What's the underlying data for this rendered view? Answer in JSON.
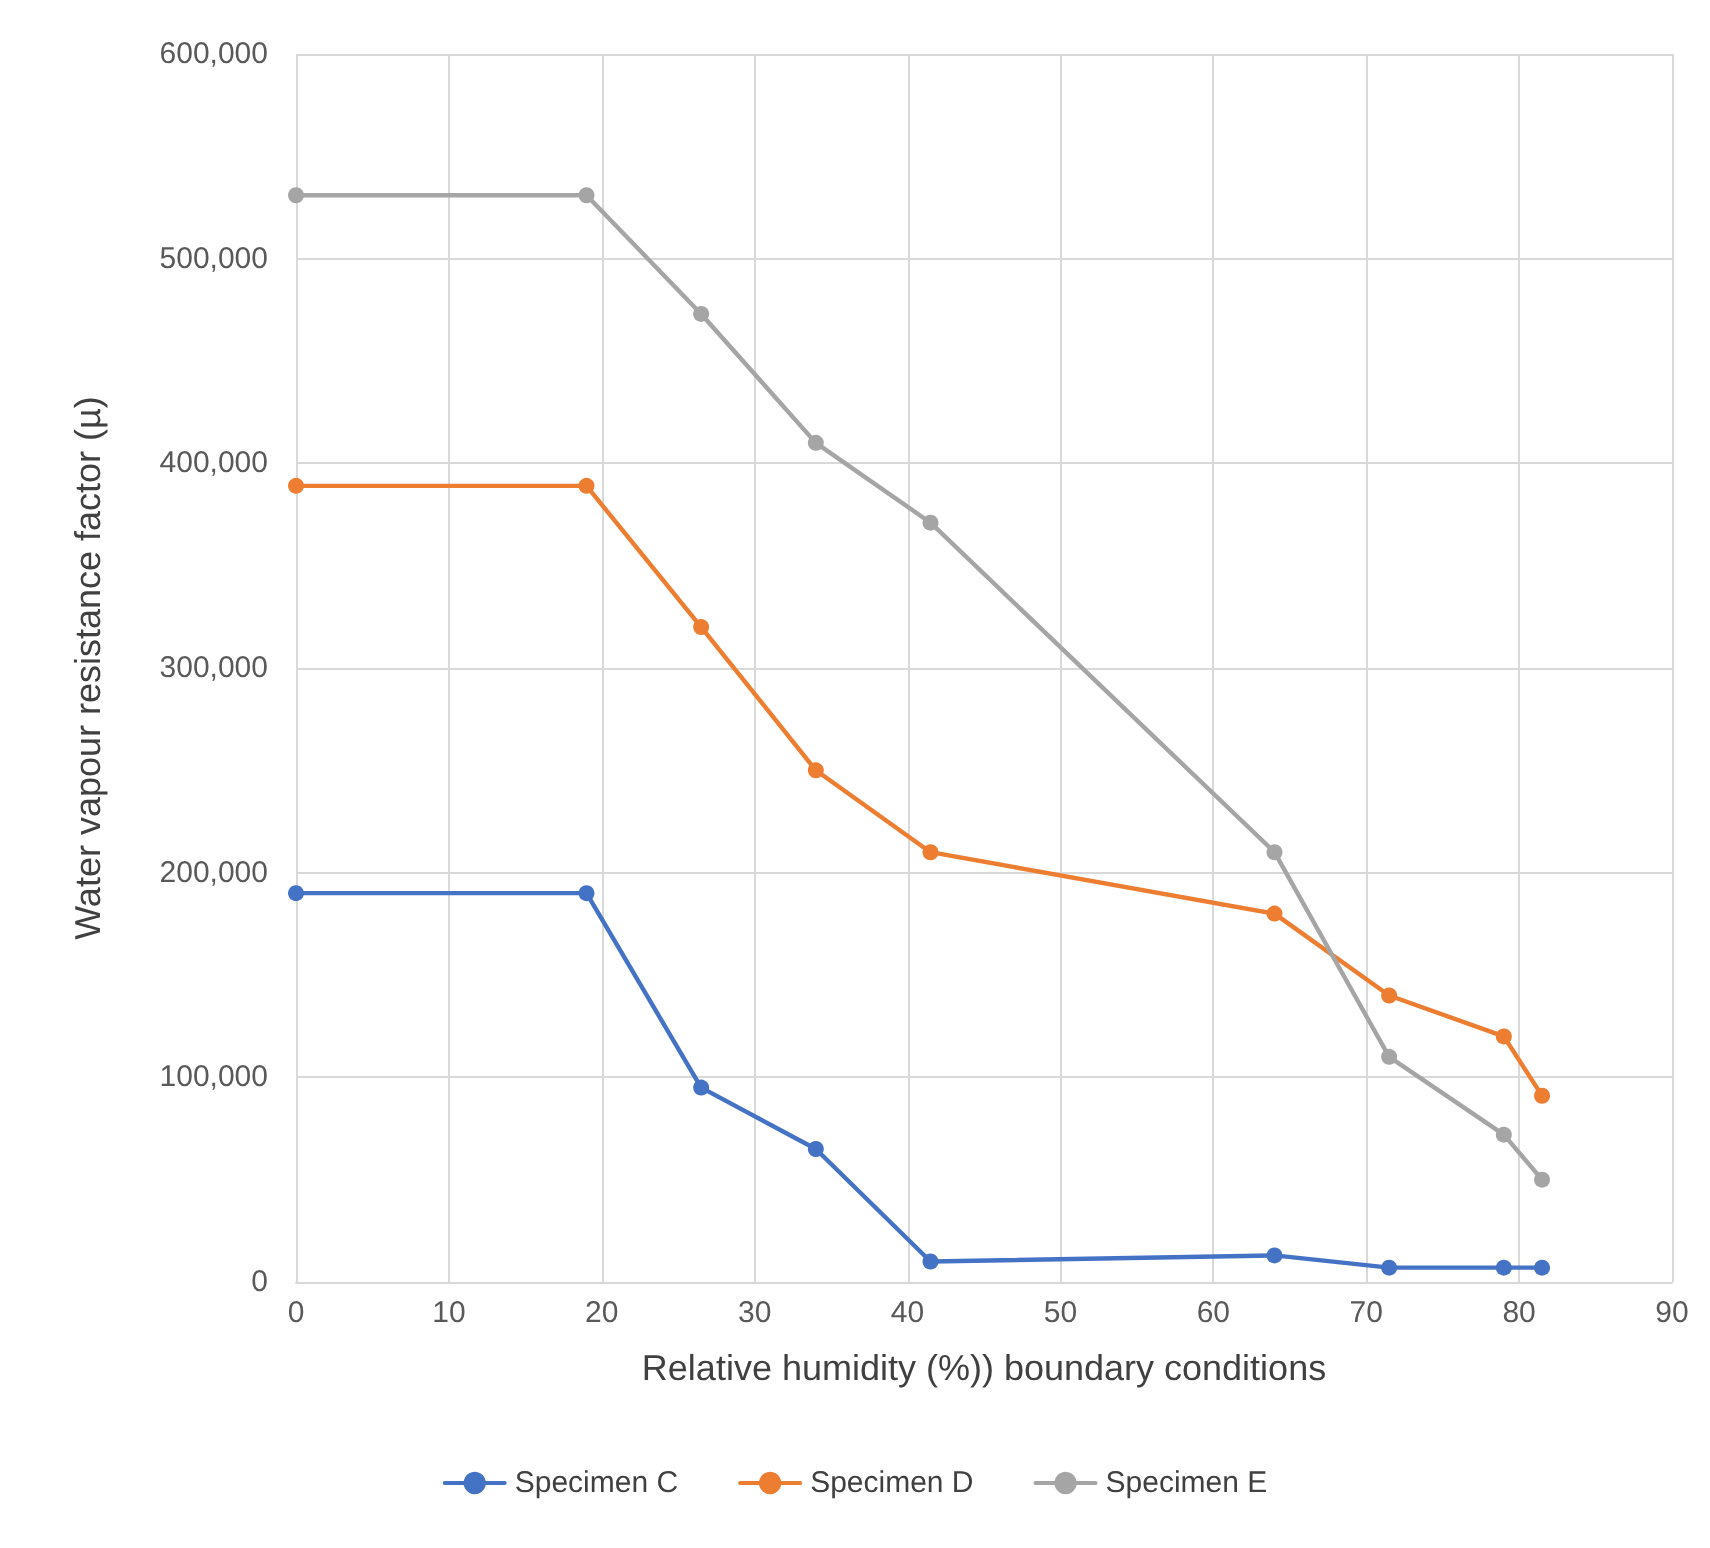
{
  "chart_data": {
    "type": "line",
    "xlabel": "Relative humidity (%)) boundary conditions",
    "ylabel": "Water vapour resistance factor (µ)",
    "xlim": [
      0,
      90
    ],
    "xticks": [
      0,
      10,
      20,
      30,
      40,
      50,
      60,
      70,
      80,
      90
    ],
    "ylim": [
      0,
      600000
    ],
    "yticks": [
      {
        "value": 0,
        "label": "0"
      },
      {
        "value": 100000,
        "label": "100,000"
      },
      {
        "value": 200000,
        "label": "200,000"
      },
      {
        "value": 300000,
        "label": "300,000"
      },
      {
        "value": 400000,
        "label": "400,000"
      },
      {
        "value": 500000,
        "label": "500,000"
      },
      {
        "value": 600000,
        "label": "600,000"
      }
    ],
    "x": [
      0,
      19,
      26.5,
      34,
      41.5,
      64,
      71.5,
      79,
      81.5
    ],
    "series": [
      {
        "name": "Specimen C",
        "color": "#4472c4",
        "values": [
          190000,
          190000,
          95000,
          65000,
          10000,
          13000,
          7000,
          7000,
          7000
        ]
      },
      {
        "name": "Specimen D",
        "color": "#ed7d31",
        "values": [
          389000,
          389000,
          320000,
          250000,
          210000,
          180000,
          140000,
          120000,
          91000
        ]
      },
      {
        "name": "Specimen E",
        "color": "#a5a5a5",
        "values": [
          531000,
          531000,
          473000,
          410000,
          371000,
          210000,
          110000,
          72000,
          50000
        ]
      }
    ],
    "grid": true,
    "legend": "bottom",
    "marker": "circle",
    "line_style": "solid"
  }
}
